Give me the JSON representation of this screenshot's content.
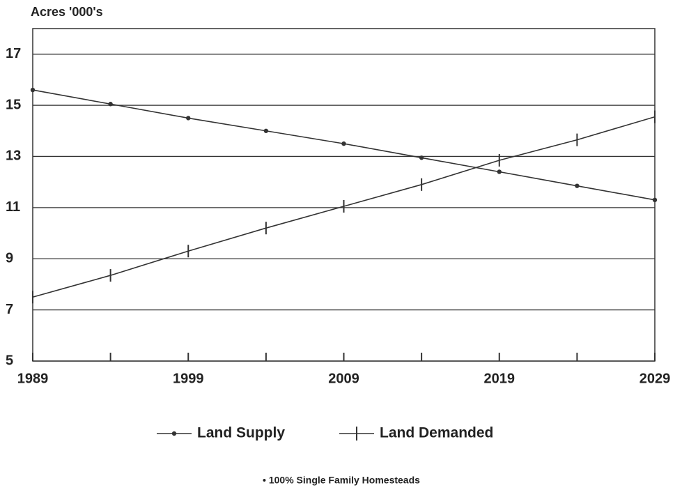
{
  "chart_data": {
    "type": "line",
    "y_label": "Acres '000's",
    "x": [
      1989,
      1994,
      1999,
      2004,
      2009,
      2014,
      2019,
      2024,
      2029
    ],
    "series": [
      {
        "name": "Land Supply",
        "color": "#333333",
        "marker": "dot",
        "values": [
          15.6,
          15.05,
          14.5,
          14.0,
          13.5,
          12.95,
          12.4,
          11.85,
          11.3
        ]
      },
      {
        "name": "Land Demanded",
        "color": "#333333",
        "marker": "vtick",
        "values": [
          7.5,
          8.35,
          9.3,
          10.2,
          11.05,
          11.9,
          12.85,
          13.65,
          14.55
        ]
      }
    ],
    "xlim": [
      1989,
      2029
    ],
    "xticks": [
      1989,
      1999,
      2009,
      2019,
      2029
    ],
    "xminorticks": [
      1994,
      2004,
      2014,
      2024
    ],
    "ylim": [
      5,
      18
    ],
    "yticks": [
      5,
      7,
      9,
      11,
      13,
      15,
      17
    ],
    "grid": true,
    "legend": "bottom",
    "note": "• 100% Single Family Homesteads"
  }
}
